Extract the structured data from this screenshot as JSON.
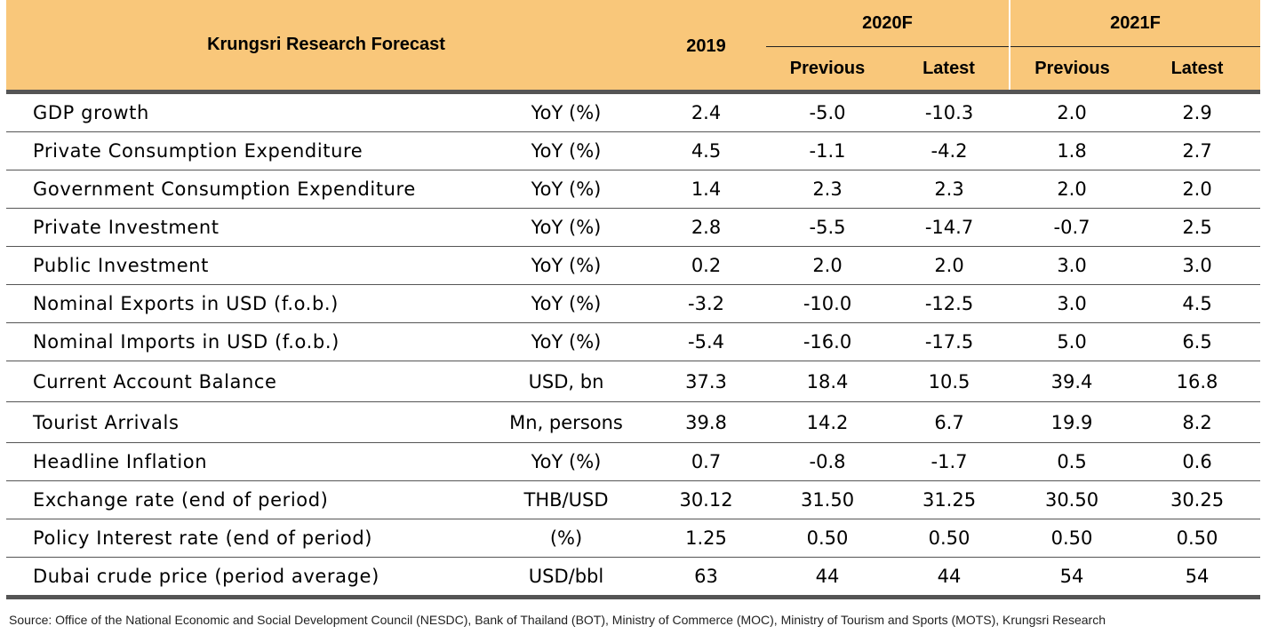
{
  "header": {
    "title": "Krungsri Research Forecast",
    "col_2019": "2019",
    "year_2020": "2020F",
    "year_2021": "2021F",
    "previous": "Previous",
    "latest": "Latest"
  },
  "rows": [
    {
      "label": "GDP growth",
      "unit": "YoY (%)",
      "v2019": "2.4",
      "prev2020": "-5.0",
      "latest2020": "-10.3",
      "prev2021": "2.0",
      "latest2021": "2.9"
    },
    {
      "label": "Private Consumption Expenditure",
      "unit": "YoY (%)",
      "v2019": "4.5",
      "prev2020": "-1.1",
      "latest2020": "-4.2",
      "prev2021": "1.8",
      "latest2021": "2.7"
    },
    {
      "label": "Government Consumption Expenditure",
      "unit": "YoY (%)",
      "v2019": "1.4",
      "prev2020": "2.3",
      "latest2020": "2.3",
      "prev2021": "2.0",
      "latest2021": "2.0"
    },
    {
      "label": "Private Investment",
      "unit": "YoY (%)",
      "v2019": "2.8",
      "prev2020": "-5.5",
      "latest2020": "-14.7",
      "prev2021": "-0.7",
      "latest2021": "2.5"
    },
    {
      "label": "Public Investment",
      "unit": "YoY (%)",
      "v2019": "0.2",
      "prev2020": "2.0",
      "latest2020": "2.0",
      "prev2021": "3.0",
      "latest2021": "3.0"
    },
    {
      "label": "Nominal Exports in USD (f.o.b.)",
      "unit": "YoY (%)",
      "v2019": "-3.2",
      "prev2020": "-10.0",
      "latest2020": "-12.5",
      "prev2021": "3.0",
      "latest2021": "4.5"
    },
    {
      "label": "Nominal Imports in USD (f.o.b.)",
      "unit": "YoY (%)",
      "v2019": "-5.4",
      "prev2020": "-16.0",
      "latest2020": "-17.5",
      "prev2021": "5.0",
      "latest2021": "6.5"
    },
    {
      "label": "Current Account Balance",
      "unit": "USD, bn",
      "v2019": "37.3",
      "prev2020": "18.4",
      "latest2020": "10.5",
      "prev2021": "39.4",
      "latest2021": "16.8"
    },
    {
      "label": "Tourist Arrivals",
      "unit": "Mn, persons",
      "v2019": "39.8",
      "prev2020": "14.2",
      "latest2020": "6.7",
      "prev2021": "19.9",
      "latest2021": "8.2"
    },
    {
      "label": "Headline Inflation",
      "unit": "YoY (%)",
      "v2019": "0.7",
      "prev2020": "-0.8",
      "latest2020": "-1.7",
      "prev2021": "0.5",
      "latest2021": "0.6"
    },
    {
      "label": "Exchange rate (end of period)",
      "unit": "THB/USD",
      "v2019": "30.12",
      "prev2020": "31.50",
      "latest2020": "31.25",
      "prev2021": "30.50",
      "latest2021": "30.25"
    },
    {
      "label": "Policy Interest rate (end of period)",
      "unit": "(%)",
      "v2019": "1.25",
      "prev2020": "0.50",
      "latest2020": "0.50",
      "prev2021": "0.50",
      "latest2021": "0.50"
    },
    {
      "label": "Dubai crude price (period average)",
      "unit": "USD/bbl",
      "v2019": "63",
      "prev2020": "44",
      "latest2020": "44",
      "prev2021": "54",
      "latest2021": "54"
    }
  ],
  "source": "Source: Office of the National Economic and Social Development Council (NESDC), Bank of Thailand (BOT), Ministry of Commerce (MOC), Ministry of Tourism and Sports (MOTS), Krungsri Research"
}
